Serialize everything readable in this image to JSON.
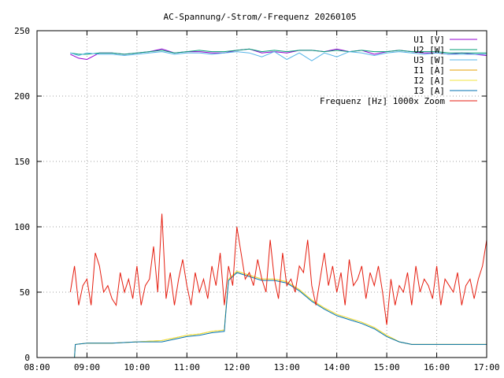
{
  "chart_data": {
    "type": "line",
    "title": "AC-Spannung/-Strom/-Frequenz 20260105",
    "xlabel": "",
    "ylabel": "",
    "xlim": [
      "08:00",
      "17:00"
    ],
    "ylim": [
      0,
      250
    ],
    "grid": true,
    "legend_position": "top-right",
    "x_ticks": [
      "08:00",
      "09:00",
      "10:00",
      "11:00",
      "12:00",
      "13:00",
      "14:00",
      "15:00",
      "16:00",
      "17:00"
    ],
    "y_ticks": [
      "0",
      "50",
      "100",
      "150",
      "200",
      "250"
    ],
    "series": [
      {
        "name": "U1 [V]",
        "color": "#9400d3",
        "x": [
          "08:40",
          "08:50",
          "09:00",
          "09:15",
          "09:30",
          "09:45",
          "10:00",
          "10:15",
          "10:30",
          "10:45",
          "11:00",
          "11:15",
          "11:30",
          "11:45",
          "12:00",
          "12:15",
          "12:30",
          "12:45",
          "13:00",
          "13:15",
          "13:30",
          "13:45",
          "14:00",
          "14:15",
          "14:30",
          "14:45",
          "15:00",
          "15:15",
          "15:30",
          "15:45",
          "16:00",
          "16:15",
          "16:30",
          "16:45",
          "17:00"
        ],
        "values": [
          232,
          229,
          228,
          233,
          233,
          232,
          233,
          234,
          236,
          233,
          234,
          234,
          233,
          233,
          235,
          236,
          233,
          234,
          233,
          235,
          235,
          234,
          236,
          234,
          235,
          232,
          234,
          235,
          234,
          233,
          233,
          232,
          233,
          232,
          231
        ]
      },
      {
        "name": "U2 [W]",
        "color": "#009e73",
        "x": [
          "08:40",
          "08:50",
          "09:00",
          "09:15",
          "09:30",
          "09:45",
          "10:00",
          "10:15",
          "10:30",
          "10:45",
          "11:00",
          "11:15",
          "11:30",
          "11:45",
          "12:00",
          "12:15",
          "12:30",
          "12:45",
          "13:00",
          "13:15",
          "13:30",
          "13:45",
          "14:00",
          "14:15",
          "14:30",
          "14:45",
          "15:00",
          "15:15",
          "15:30",
          "15:45",
          "16:00",
          "16:15",
          "16:30",
          "16:45",
          "17:00"
        ],
        "values": [
          233,
          232,
          232,
          233,
          233,
          232,
          233,
          234,
          235,
          233,
          234,
          235,
          234,
          234,
          235,
          236,
          234,
          235,
          234,
          235,
          235,
          234,
          235,
          234,
          235,
          234,
          234,
          235,
          234,
          234,
          234,
          233,
          233,
          233,
          233
        ]
      },
      {
        "name": "U3 [W]",
        "color": "#56b4e9",
        "x": [
          "08:40",
          "08:50",
          "09:00",
          "09:15",
          "09:30",
          "09:45",
          "10:00",
          "10:15",
          "10:30",
          "10:45",
          "11:00",
          "11:15",
          "11:30",
          "11:45",
          "12:00",
          "12:15",
          "12:30",
          "12:45",
          "13:00",
          "13:15",
          "13:30",
          "13:45",
          "14:00",
          "14:15",
          "14:30",
          "14:45",
          "15:00",
          "15:15",
          "15:30",
          "15:45",
          "16:00",
          "16:15",
          "16:30",
          "16:45",
          "17:00"
        ],
        "values": [
          233,
          231,
          233,
          232,
          232,
          231,
          232,
          233,
          234,
          232,
          233,
          233,
          232,
          233,
          234,
          233,
          230,
          234,
          228,
          233,
          227,
          233,
          230,
          234,
          233,
          231,
          233,
          234,
          233,
          232,
          233,
          232,
          232,
          232,
          232
        ]
      },
      {
        "name": "I1 [A]",
        "color": "#e69f00",
        "x": [
          "08:45",
          "08:46",
          "09:00",
          "09:30",
          "10:00",
          "10:30",
          "10:45",
          "11:00",
          "11:15",
          "11:30",
          "11:45",
          "11:46",
          "11:50",
          "12:00",
          "12:15",
          "12:30",
          "12:45",
          "13:00",
          "13:15",
          "13:30",
          "13:45",
          "14:00",
          "14:15",
          "14:30",
          "14:45",
          "15:00",
          "15:15",
          "15:30",
          "15:45",
          "16:00",
          "16:30",
          "17:00"
        ],
        "values": [
          0,
          10,
          11,
          11,
          12,
          13,
          15,
          17,
          18,
          20,
          21,
          30,
          60,
          66,
          63,
          60,
          60,
          58,
          52,
          44,
          38,
          33,
          30,
          27,
          23,
          17,
          12,
          10,
          10,
          10,
          10,
          10
        ]
      },
      {
        "name": "I2 [A]",
        "color": "#f0e442",
        "x": [
          "08:45",
          "08:46",
          "09:00",
          "09:30",
          "10:00",
          "10:30",
          "10:45",
          "11:00",
          "11:15",
          "11:30",
          "11:45",
          "11:46",
          "11:50",
          "12:00",
          "12:15",
          "12:30",
          "12:45",
          "13:00",
          "13:15",
          "13:30",
          "13:45",
          "14:00",
          "14:15",
          "14:30",
          "14:45",
          "15:00",
          "15:15",
          "15:30",
          "15:45",
          "16:00",
          "16:30",
          "17:00"
        ],
        "values": [
          0,
          10,
          11,
          11,
          12,
          13,
          15,
          17,
          18,
          20,
          21,
          30,
          60,
          66,
          63,
          60,
          60,
          58,
          52,
          44,
          38,
          33,
          30,
          27,
          23,
          17,
          12,
          10,
          10,
          10,
          10,
          10
        ]
      },
      {
        "name": "I3 [A]",
        "color": "#0072b2",
        "x": [
          "08:45",
          "08:46",
          "09:00",
          "09:30",
          "10:00",
          "10:30",
          "10:45",
          "11:00",
          "11:15",
          "11:30",
          "11:45",
          "11:46",
          "11:50",
          "12:00",
          "12:15",
          "12:30",
          "12:45",
          "13:00",
          "13:15",
          "13:30",
          "13:45",
          "14:00",
          "14:15",
          "14:30",
          "14:45",
          "15:00",
          "15:15",
          "15:30",
          "15:45",
          "16:00",
          "16:30",
          "17:00"
        ],
        "values": [
          0,
          10,
          11,
          11,
          12,
          12,
          14,
          16,
          17,
          19,
          20,
          29,
          59,
          65,
          62,
          59,
          59,
          57,
          51,
          43,
          37,
          32,
          29,
          26,
          22,
          16,
          12,
          10,
          10,
          10,
          10,
          10
        ]
      },
      {
        "name": "Frequenz [Hz] 1000x Zoom",
        "color": "#e51e10",
        "x": [
          "08:40",
          "08:45",
          "08:50",
          "08:55",
          "09:00",
          "09:05",
          "09:10",
          "09:15",
          "09:20",
          "09:25",
          "09:30",
          "09:35",
          "09:40",
          "09:45",
          "09:50",
          "09:55",
          "10:00",
          "10:05",
          "10:10",
          "10:15",
          "10:20",
          "10:25",
          "10:30",
          "10:35",
          "10:40",
          "10:45",
          "10:50",
          "10:55",
          "11:00",
          "11:05",
          "11:10",
          "11:15",
          "11:20",
          "11:25",
          "11:30",
          "11:35",
          "11:40",
          "11:45",
          "11:50",
          "11:55",
          "12:00",
          "12:05",
          "12:10",
          "12:15",
          "12:20",
          "12:25",
          "12:30",
          "12:35",
          "12:40",
          "12:45",
          "12:50",
          "12:55",
          "13:00",
          "13:05",
          "13:10",
          "13:15",
          "13:20",
          "13:25",
          "13:30",
          "13:35",
          "13:40",
          "13:45",
          "13:50",
          "13:55",
          "14:00",
          "14:05",
          "14:10",
          "14:15",
          "14:20",
          "14:25",
          "14:30",
          "14:35",
          "14:40",
          "14:45",
          "14:50",
          "14:55",
          "15:00",
          "15:05",
          "15:10",
          "15:15",
          "15:20",
          "15:25",
          "15:30",
          "15:35",
          "15:40",
          "15:45",
          "15:50",
          "15:55",
          "16:00",
          "16:05",
          "16:10",
          "16:15",
          "16:20",
          "16:25",
          "16:30",
          "16:35",
          "16:40",
          "16:45",
          "16:50",
          "16:55",
          "17:00"
        ],
        "values": [
          50,
          70,
          40,
          55,
          60,
          40,
          80,
          70,
          50,
          55,
          45,
          40,
          65,
          50,
          60,
          45,
          70,
          40,
          55,
          60,
          85,
          50,
          110,
          45,
          65,
          40,
          60,
          75,
          55,
          40,
          65,
          50,
          60,
          45,
          70,
          55,
          80,
          40,
          70,
          55,
          100,
          80,
          60,
          65,
          55,
          75,
          60,
          50,
          90,
          60,
          45,
          80,
          55,
          60,
          50,
          70,
          65,
          90,
          55,
          40,
          60,
          80,
          55,
          70,
          50,
          65,
          40,
          75,
          55,
          60,
          70,
          45,
          65,
          55,
          70,
          50,
          25,
          60,
          40,
          55,
          50,
          65,
          40,
          70,
          50,
          60,
          55,
          45,
          70,
          40,
          60,
          55,
          50,
          65,
          40,
          55,
          60,
          45,
          60,
          70,
          90
        ]
      }
    ]
  }
}
